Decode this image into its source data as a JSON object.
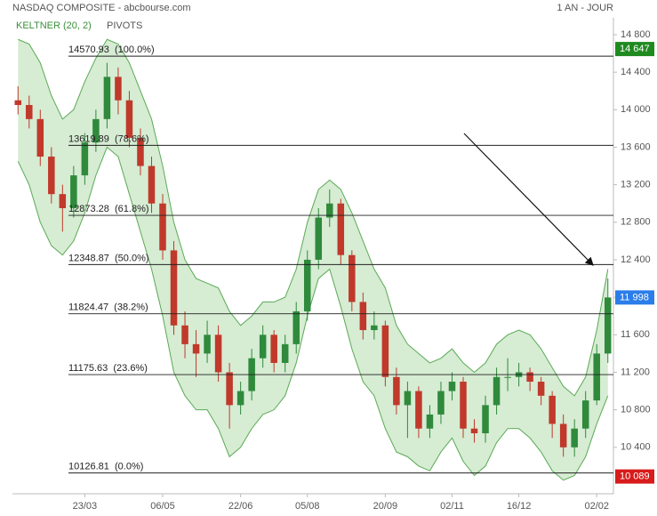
{
  "chart_data": {
    "type": "candlestick",
    "title": "NASDAQ COMPOSITE - abcbourse.com",
    "period": "1 AN - JOUR",
    "indicators": [
      "KELTNER (20, 2)",
      "PIVOTS"
    ],
    "categories": [
      null,
      null,
      null,
      null,
      null,
      null,
      "23/03",
      null,
      null,
      null,
      null,
      null,
      null,
      "06/05",
      null,
      null,
      null,
      null,
      null,
      null,
      "22/06",
      null,
      null,
      null,
      null,
      null,
      "05/08",
      null,
      null,
      null,
      null,
      null,
      null,
      "20/09",
      null,
      null,
      null,
      null,
      null,
      "02/11",
      null,
      null,
      null,
      null,
      null,
      "16/12",
      null,
      null,
      null,
      null,
      null,
      null,
      "02/02",
      null
    ],
    "open": [
      14100,
      14050,
      13900,
      13500,
      13100,
      12950,
      13300,
      13650,
      13900,
      14350,
      14100,
      13700,
      13400,
      13000,
      12500,
      11700,
      11500,
      11400,
      11600,
      11200,
      10850,
      11000,
      11350,
      11600,
      11300,
      11500,
      11850,
      12400,
      12850,
      13000,
      12450,
      11950,
      11650,
      11700,
      11150,
      10850,
      11000,
      10600,
      10750,
      11000,
      11100,
      10600,
      10550,
      10850,
      11150,
      11150,
      11200,
      11100,
      10950,
      10650,
      10400,
      10600,
      10900,
      11400
    ],
    "high": [
      14250,
      14150,
      14000,
      13600,
      13200,
      13400,
      13750,
      14000,
      14500,
      14450,
      14200,
      13800,
      13500,
      13100,
      12600,
      11850,
      11650,
      11750,
      11700,
      11300,
      11100,
      11450,
      11700,
      11650,
      11600,
      11950,
      12500,
      12950,
      13150,
      13050,
      12500,
      12050,
      11850,
      11750,
      11250,
      11100,
      11050,
      10850,
      11100,
      11200,
      11150,
      10700,
      10950,
      11250,
      11350,
      11300,
      11250,
      11150,
      11000,
      10750,
      10700,
      11000,
      11500,
      12200
    ],
    "low": [
      13950,
      13800,
      13400,
      13000,
      12700,
      12850,
      13200,
      13550,
      13800,
      13950,
      13600,
      13300,
      12900,
      12400,
      11600,
      11350,
      11150,
      11300,
      11100,
      10600,
      10750,
      10900,
      11250,
      11200,
      11200,
      11400,
      11750,
      12300,
      12750,
      12350,
      11850,
      11550,
      11550,
      11050,
      10750,
      10500,
      10500,
      10500,
      10650,
      10900,
      10500,
      10450,
      10450,
      10750,
      11000,
      11050,
      11000,
      10850,
      10500,
      10300,
      10300,
      10500,
      10850,
      11300
    ],
    "close": [
      14050,
      13900,
      13500,
      13100,
      12950,
      13300,
      13650,
      13900,
      14350,
      14100,
      13700,
      13400,
      13000,
      12500,
      11700,
      11500,
      11400,
      11600,
      11200,
      10850,
      11000,
      11350,
      11600,
      11300,
      11500,
      11850,
      12400,
      12850,
      13000,
      12450,
      11950,
      11650,
      11700,
      11150,
      10850,
      11000,
      10600,
      10750,
      11000,
      11100,
      10600,
      10550,
      10850,
      11150,
      11150,
      11200,
      11100,
      10950,
      10650,
      10400,
      10600,
      10900,
      11400,
      11998
    ],
    "up_color": "#2f8a3c",
    "down_color": "#c0392b",
    "keltner": {
      "color": "#5aaa55",
      "fill": "#cfe9cb",
      "upper": [
        14750,
        14700,
        14500,
        14150,
        13900,
        14000,
        14300,
        14550,
        14750,
        14700,
        14500,
        14200,
        13900,
        13400,
        12800,
        12400,
        12200,
        12150,
        12100,
        11850,
        11700,
        11800,
        11950,
        11950,
        12000,
        12300,
        12800,
        13150,
        13250,
        13150,
        12900,
        12600,
        12300,
        12100,
        11700,
        11500,
        11400,
        11300,
        11350,
        11450,
        11300,
        11200,
        11300,
        11500,
        11600,
        11650,
        11600,
        11450,
        11250,
        11050,
        10950,
        11150,
        11650,
        12300
      ],
      "lower": [
        13450,
        13200,
        12800,
        12550,
        12450,
        12600,
        12900,
        13300,
        13600,
        13500,
        13100,
        12700,
        12300,
        11800,
        11200,
        10950,
        10800,
        10800,
        10600,
        10300,
        10400,
        10600,
        10750,
        10800,
        10950,
        11300,
        11800,
        12200,
        12300,
        11900,
        11450,
        11100,
        10950,
        10600,
        10350,
        10300,
        10200,
        10150,
        10350,
        10500,
        10250,
        10100,
        10200,
        10450,
        10600,
        10600,
        10500,
        10350,
        10150,
        10050,
        10100,
        10300,
        10650,
        10950
      ]
    },
    "levels": [
      {
        "value": 14570.93,
        "label": "14570.93  (100.0%)"
      },
      {
        "value": 13619.89,
        "label": "13619.89  (78.6%)"
      },
      {
        "value": 12873.28,
        "label": "12873.28  (61.8%)"
      },
      {
        "value": 12348.87,
        "label": "12348.87  (50.0%)"
      },
      {
        "value": 11824.47,
        "label": "11824.47  (38.2%)"
      },
      {
        "value": 11175.63,
        "label": "11175.63  (23.6%)"
      },
      {
        "value": 10126.81,
        "label": "10126.81  (0.0%)"
      }
    ],
    "badges": [
      {
        "value": 14647,
        "label": "14 647",
        "color": "#1f8a1f"
      },
      {
        "value": 11998,
        "label": "11 998",
        "color": "#2b7de9"
      },
      {
        "value": 10089,
        "label": "10 089",
        "color": "#d81b1b"
      }
    ],
    "ylim": [
      9905,
      14980
    ],
    "yticks": [
      {
        "value": 10400,
        "label": "10 400"
      },
      {
        "value": 10800,
        "label": "10 800"
      },
      {
        "value": 11200,
        "label": "11 200"
      },
      {
        "value": 11600,
        "label": "11 600"
      },
      {
        "value": 12000,
        "label": "12 000"
      },
      {
        "value": 12400,
        "label": "12 400"
      },
      {
        "value": 12800,
        "label": "12 800"
      },
      {
        "value": 13200,
        "label": "13 200"
      },
      {
        "value": 13600,
        "label": "13 600"
      },
      {
        "value": 14000,
        "label": "14 000"
      },
      {
        "value": 14400,
        "label": "14 400"
      },
      {
        "value": 14800,
        "label": "14 800"
      }
    ]
  }
}
